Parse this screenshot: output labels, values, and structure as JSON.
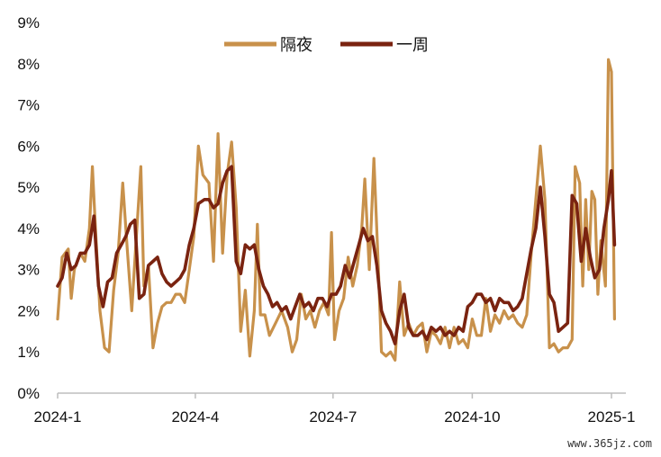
{
  "chart_data": {
    "type": "line",
    "title": "",
    "xlabel": "",
    "ylabel": "",
    "x_range": [
      "2024-01-01",
      "2025-01-10"
    ],
    "ylim": [
      0,
      9
    ],
    "y_ticks": [
      0,
      1,
      2,
      3,
      4,
      5,
      6,
      7,
      8,
      9
    ],
    "y_tick_labels": [
      "0%",
      "1%",
      "2%",
      "3%",
      "4%",
      "5%",
      "6%",
      "7%",
      "8%",
      "9%"
    ],
    "x_ticks": [
      "2024-01-01",
      "2024-04-01",
      "2024-07-01",
      "2024-10-01",
      "2025-01-01"
    ],
    "x_tick_labels": [
      "2024-1",
      "2024-4",
      "2024-7",
      "2024-10",
      "2025-1"
    ],
    "grid": false,
    "legend": "top-center",
    "series": [
      {
        "name": "隔夜",
        "color": "#C8914B",
        "points": [
          [
            "2024-01-01",
            1.8
          ],
          [
            "2024-01-04",
            3.3
          ],
          [
            "2024-01-08",
            3.5
          ],
          [
            "2024-01-10",
            2.3
          ],
          [
            "2024-01-12",
            3.0
          ],
          [
            "2024-01-16",
            3.4
          ],
          [
            "2024-01-19",
            3.2
          ],
          [
            "2024-01-22",
            4.0
          ],
          [
            "2024-01-24",
            5.5
          ],
          [
            "2024-01-26",
            4.0
          ],
          [
            "2024-01-29",
            2.0
          ],
          [
            "2024-02-01",
            1.1
          ],
          [
            "2024-02-04",
            1.0
          ],
          [
            "2024-02-07",
            2.5
          ],
          [
            "2024-02-10",
            3.4
          ],
          [
            "2024-02-13",
            5.1
          ],
          [
            "2024-02-16",
            3.5
          ],
          [
            "2024-02-19",
            2.0
          ],
          [
            "2024-02-22",
            3.8
          ],
          [
            "2024-02-25",
            5.5
          ],
          [
            "2024-02-27",
            2.6
          ],
          [
            "2024-03-01",
            3.1
          ],
          [
            "2024-03-04",
            1.1
          ],
          [
            "2024-03-07",
            1.7
          ],
          [
            "2024-03-10",
            2.1
          ],
          [
            "2024-03-13",
            2.2
          ],
          [
            "2024-03-16",
            2.2
          ],
          [
            "2024-03-19",
            2.4
          ],
          [
            "2024-03-22",
            2.4
          ],
          [
            "2024-03-25",
            2.2
          ],
          [
            "2024-03-28",
            3.0
          ],
          [
            "2024-03-31",
            3.8
          ],
          [
            "2024-04-03",
            6.0
          ],
          [
            "2024-04-06",
            5.3
          ],
          [
            "2024-04-10",
            5.1
          ],
          [
            "2024-04-13",
            3.2
          ],
          [
            "2024-04-16",
            6.3
          ],
          [
            "2024-04-19",
            3.4
          ],
          [
            "2024-04-22",
            5.3
          ],
          [
            "2024-04-25",
            6.1
          ],
          [
            "2024-04-28",
            4.5
          ],
          [
            "2024-05-01",
            1.5
          ],
          [
            "2024-05-04",
            2.5
          ],
          [
            "2024-05-07",
            0.9
          ],
          [
            "2024-05-10",
            2.0
          ],
          [
            "2024-05-12",
            4.1
          ],
          [
            "2024-05-14",
            1.9
          ],
          [
            "2024-05-17",
            1.9
          ],
          [
            "2024-05-20",
            1.4
          ],
          [
            "2024-05-24",
            1.7
          ],
          [
            "2024-05-28",
            2.0
          ],
          [
            "2024-06-01",
            1.6
          ],
          [
            "2024-06-04",
            1.0
          ],
          [
            "2024-06-07",
            1.3
          ],
          [
            "2024-06-10",
            2.4
          ],
          [
            "2024-06-13",
            1.8
          ],
          [
            "2024-06-16",
            2.0
          ],
          [
            "2024-06-19",
            1.6
          ],
          [
            "2024-06-22",
            2.0
          ],
          [
            "2024-06-25",
            2.2
          ],
          [
            "2024-06-28",
            1.9
          ],
          [
            "2024-06-30",
            3.9
          ],
          [
            "2024-07-02",
            1.3
          ],
          [
            "2024-07-05",
            2.0
          ],
          [
            "2024-07-08",
            2.3
          ],
          [
            "2024-07-11",
            3.3
          ],
          [
            "2024-07-14",
            2.6
          ],
          [
            "2024-07-17",
            3.1
          ],
          [
            "2024-07-20",
            4.0
          ],
          [
            "2024-07-22",
            5.2
          ],
          [
            "2024-07-25",
            3.0
          ],
          [
            "2024-07-28",
            5.7
          ],
          [
            "2024-07-31",
            3.0
          ],
          [
            "2024-08-02",
            1.0
          ],
          [
            "2024-08-05",
            0.9
          ],
          [
            "2024-08-08",
            1.0
          ],
          [
            "2024-08-11",
            0.8
          ],
          [
            "2024-08-14",
            2.7
          ],
          [
            "2024-08-17",
            1.4
          ],
          [
            "2024-08-20",
            1.7
          ],
          [
            "2024-08-23",
            1.4
          ],
          [
            "2024-08-26",
            1.6
          ],
          [
            "2024-08-29",
            1.7
          ],
          [
            "2024-09-01",
            1.0
          ],
          [
            "2024-09-04",
            1.5
          ],
          [
            "2024-09-07",
            1.4
          ],
          [
            "2024-09-10",
            1.2
          ],
          [
            "2024-09-13",
            1.6
          ],
          [
            "2024-09-16",
            1.1
          ],
          [
            "2024-09-19",
            1.6
          ],
          [
            "2024-09-22",
            1.2
          ],
          [
            "2024-09-25",
            1.3
          ],
          [
            "2024-09-28",
            1.1
          ],
          [
            "2024-10-01",
            1.8
          ],
          [
            "2024-10-04",
            1.4
          ],
          [
            "2024-10-07",
            1.4
          ],
          [
            "2024-10-10",
            2.3
          ],
          [
            "2024-10-13",
            1.5
          ],
          [
            "2024-10-16",
            1.9
          ],
          [
            "2024-10-19",
            1.7
          ],
          [
            "2024-10-22",
            2.0
          ],
          [
            "2024-10-25",
            1.8
          ],
          [
            "2024-10-28",
            1.9
          ],
          [
            "2024-10-31",
            1.7
          ],
          [
            "2024-11-03",
            1.6
          ],
          [
            "2024-11-06",
            1.9
          ],
          [
            "2024-11-09",
            3.4
          ],
          [
            "2024-11-12",
            4.7
          ],
          [
            "2024-11-15",
            6.0
          ],
          [
            "2024-11-18",
            4.7
          ],
          [
            "2024-11-21",
            1.1
          ],
          [
            "2024-11-24",
            1.2
          ],
          [
            "2024-11-27",
            1.0
          ],
          [
            "2024-11-30",
            1.1
          ],
          [
            "2024-12-03",
            1.1
          ],
          [
            "2024-12-06",
            1.3
          ],
          [
            "2024-12-08",
            5.5
          ],
          [
            "2024-12-11",
            5.1
          ],
          [
            "2024-12-13",
            2.6
          ],
          [
            "2024-12-15",
            4.7
          ],
          [
            "2024-12-17",
            3.0
          ],
          [
            "2024-12-19",
            4.9
          ],
          [
            "2024-12-21",
            4.7
          ],
          [
            "2024-12-23",
            2.4
          ],
          [
            "2024-12-25",
            3.7
          ],
          [
            "2024-12-28",
            2.6
          ],
          [
            "2024-12-30",
            8.1
          ],
          [
            "2025-01-01",
            7.8
          ],
          [
            "2025-01-03",
            1.8
          ]
        ]
      },
      {
        "name": "一周",
        "color": "#7A2310",
        "points": [
          [
            "2024-01-01",
            2.6
          ],
          [
            "2024-01-04",
            2.8
          ],
          [
            "2024-01-07",
            3.4
          ],
          [
            "2024-01-10",
            3.0
          ],
          [
            "2024-01-13",
            3.1
          ],
          [
            "2024-01-16",
            3.4
          ],
          [
            "2024-01-19",
            3.4
          ],
          [
            "2024-01-22",
            3.6
          ],
          [
            "2024-01-25",
            4.3
          ],
          [
            "2024-01-28",
            2.6
          ],
          [
            "2024-01-31",
            2.1
          ],
          [
            "2024-02-03",
            2.7
          ],
          [
            "2024-02-06",
            2.8
          ],
          [
            "2024-02-09",
            3.4
          ],
          [
            "2024-02-12",
            3.6
          ],
          [
            "2024-02-15",
            3.8
          ],
          [
            "2024-02-18",
            4.1
          ],
          [
            "2024-02-21",
            4.2
          ],
          [
            "2024-02-24",
            2.3
          ],
          [
            "2024-02-27",
            2.4
          ],
          [
            "2024-03-01",
            3.1
          ],
          [
            "2024-03-04",
            3.2
          ],
          [
            "2024-03-07",
            3.3
          ],
          [
            "2024-03-10",
            2.9
          ],
          [
            "2024-03-13",
            2.7
          ],
          [
            "2024-03-16",
            2.6
          ],
          [
            "2024-03-19",
            2.7
          ],
          [
            "2024-03-22",
            2.8
          ],
          [
            "2024-03-25",
            3.0
          ],
          [
            "2024-03-28",
            3.6
          ],
          [
            "2024-03-31",
            4.0
          ],
          [
            "2024-04-03",
            4.6
          ],
          [
            "2024-04-07",
            4.7
          ],
          [
            "2024-04-10",
            4.7
          ],
          [
            "2024-04-13",
            4.5
          ],
          [
            "2024-04-16",
            4.6
          ],
          [
            "2024-04-19",
            5.1
          ],
          [
            "2024-04-22",
            5.4
          ],
          [
            "2024-04-25",
            5.5
          ],
          [
            "2024-04-28",
            3.2
          ],
          [
            "2024-05-01",
            2.9
          ],
          [
            "2024-05-04",
            3.6
          ],
          [
            "2024-05-07",
            3.5
          ],
          [
            "2024-05-10",
            3.6
          ],
          [
            "2024-05-13",
            3.0
          ],
          [
            "2024-05-16",
            2.6
          ],
          [
            "2024-05-19",
            2.4
          ],
          [
            "2024-05-22",
            2.1
          ],
          [
            "2024-05-25",
            2.2
          ],
          [
            "2024-05-28",
            2.0
          ],
          [
            "2024-05-31",
            2.1
          ],
          [
            "2024-06-03",
            1.8
          ],
          [
            "2024-06-06",
            2.1
          ],
          [
            "2024-06-09",
            2.4
          ],
          [
            "2024-06-12",
            2.1
          ],
          [
            "2024-06-15",
            2.2
          ],
          [
            "2024-06-18",
            2.0
          ],
          [
            "2024-06-21",
            2.3
          ],
          [
            "2024-06-24",
            2.3
          ],
          [
            "2024-06-27",
            2.1
          ],
          [
            "2024-06-30",
            2.4
          ],
          [
            "2024-07-03",
            2.4
          ],
          [
            "2024-07-06",
            2.6
          ],
          [
            "2024-07-09",
            3.1
          ],
          [
            "2024-07-12",
            2.8
          ],
          [
            "2024-07-15",
            3.2
          ],
          [
            "2024-07-18",
            3.6
          ],
          [
            "2024-07-21",
            4.0
          ],
          [
            "2024-07-24",
            3.7
          ],
          [
            "2024-07-27",
            3.8
          ],
          [
            "2024-07-30",
            3.1
          ],
          [
            "2024-08-02",
            2.0
          ],
          [
            "2024-08-05",
            1.7
          ],
          [
            "2024-08-08",
            1.5
          ],
          [
            "2024-08-11",
            1.2
          ],
          [
            "2024-08-14",
            2.0
          ],
          [
            "2024-08-17",
            2.4
          ],
          [
            "2024-08-20",
            1.6
          ],
          [
            "2024-08-23",
            1.4
          ],
          [
            "2024-08-26",
            1.4
          ],
          [
            "2024-08-29",
            1.5
          ],
          [
            "2024-09-01",
            1.3
          ],
          [
            "2024-09-04",
            1.6
          ],
          [
            "2024-09-07",
            1.5
          ],
          [
            "2024-09-10",
            1.6
          ],
          [
            "2024-09-13",
            1.4
          ],
          [
            "2024-09-16",
            1.5
          ],
          [
            "2024-09-19",
            1.4
          ],
          [
            "2024-09-22",
            1.6
          ],
          [
            "2024-09-25",
            1.5
          ],
          [
            "2024-09-28",
            2.1
          ],
          [
            "2024-10-01",
            2.2
          ],
          [
            "2024-10-04",
            2.4
          ],
          [
            "2024-10-07",
            2.4
          ],
          [
            "2024-10-10",
            2.2
          ],
          [
            "2024-10-13",
            2.3
          ],
          [
            "2024-10-16",
            2.0
          ],
          [
            "2024-10-19",
            2.3
          ],
          [
            "2024-10-22",
            2.2
          ],
          [
            "2024-10-25",
            2.2
          ],
          [
            "2024-10-28",
            2.0
          ],
          [
            "2024-10-31",
            2.1
          ],
          [
            "2024-11-03",
            2.3
          ],
          [
            "2024-11-06",
            2.9
          ],
          [
            "2024-11-09",
            3.5
          ],
          [
            "2024-11-12",
            4.0
          ],
          [
            "2024-11-15",
            5.0
          ],
          [
            "2024-11-18",
            3.8
          ],
          [
            "2024-11-21",
            2.4
          ],
          [
            "2024-11-24",
            2.2
          ],
          [
            "2024-11-27",
            1.5
          ],
          [
            "2024-11-30",
            1.6
          ],
          [
            "2024-12-03",
            1.7
          ],
          [
            "2024-12-06",
            4.8
          ],
          [
            "2024-12-09",
            4.6
          ],
          [
            "2024-12-12",
            3.2
          ],
          [
            "2024-12-15",
            4.0
          ],
          [
            "2024-12-18",
            3.3
          ],
          [
            "2024-12-21",
            2.8
          ],
          [
            "2024-12-24",
            3.0
          ],
          [
            "2024-12-27",
            4.0
          ],
          [
            "2024-12-30",
            4.7
          ],
          [
            "2025-01-01",
            5.4
          ],
          [
            "2025-01-03",
            3.6
          ]
        ]
      }
    ]
  },
  "watermark": "www.365jz.com"
}
